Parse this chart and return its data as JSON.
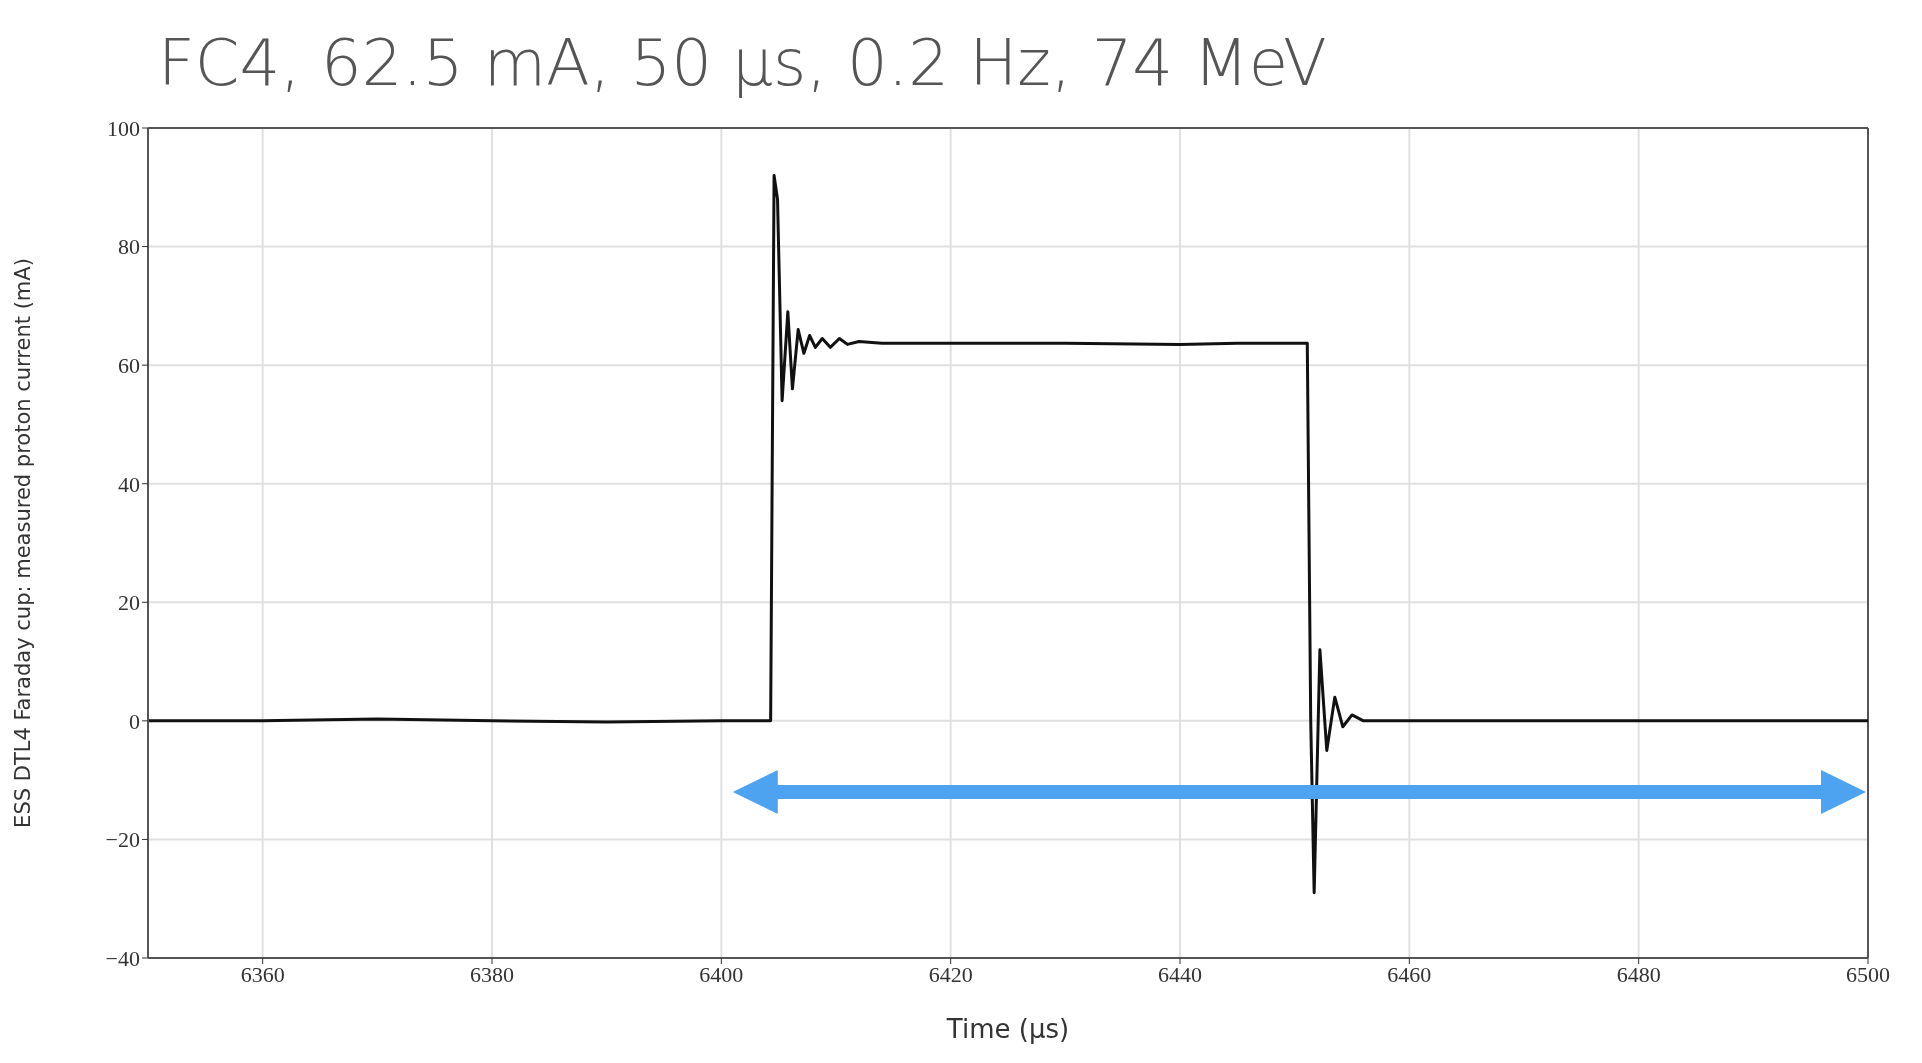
{
  "chart_data": {
    "type": "line",
    "title": "FC4, 62.5 mA, 50 μs, 0.2 Hz, 74 MeV",
    "xlabel": "Time (μs)",
    "ylabel": "ESS DTL4 Faraday cup: measured proton current (mA)",
    "x": [
      6350,
      6360,
      6370,
      6380,
      6390,
      6400,
      6404.3,
      6404.6,
      6404.9,
      6405.3,
      6405.8,
      6406.2,
      6406.7,
      6407.2,
      6407.7,
      6408.2,
      6408.8,
      6409.5,
      6410.3,
      6411,
      6412,
      6414,
      6420,
      6430,
      6440,
      6445,
      6450,
      6451.1,
      6451.4,
      6451.7,
      6452.2,
      6452.8,
      6453.5,
      6454.2,
      6455,
      6456,
      6460,
      6470,
      6480,
      6490,
      6500
    ],
    "values": [
      0,
      0,
      0.3,
      0,
      -0.2,
      0,
      0,
      92,
      88,
      54,
      69,
      56,
      66,
      62,
      65,
      63,
      64.5,
      63,
      64.5,
      63.5,
      64,
      63.7,
      63.7,
      63.7,
      63.5,
      63.7,
      63.7,
      63.7,
      0,
      -29,
      12,
      -5,
      4,
      -1,
      1,
      0,
      0,
      0,
      0,
      0,
      0
    ],
    "color": "#111111",
    "xlim": [
      6350,
      6500
    ],
    "xticks": [
      6360,
      6380,
      6400,
      6420,
      6440,
      6460,
      6480,
      6500
    ],
    "ylim": [
      -40,
      100
    ],
    "yticks": [
      -40,
      -20,
      0,
      20,
      40,
      60,
      80,
      100
    ],
    "grid": true,
    "marker": "none",
    "line_style": "solid",
    "legend": false
  }
}
